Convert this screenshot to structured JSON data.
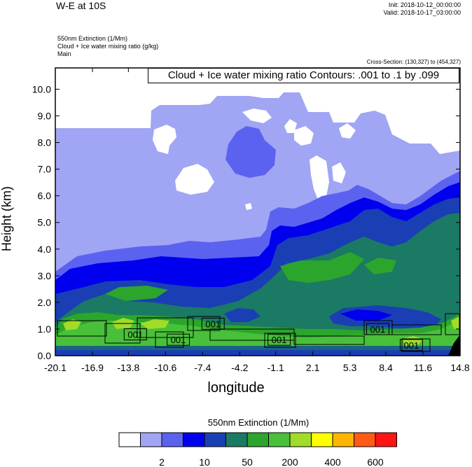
{
  "header": {
    "title": "W-E at 10S",
    "init": "Init: 2018-10-12_00:00:00",
    "valid": "Valid: 2018-10-17_03:00:00",
    "field1": "550nm Extinction   (1/Mm)",
    "field2": "Cloud + Ice water mixing ratio   (g/kg)",
    "field3": "Main",
    "cross_section": "Cross-Section: (130,327) to (454,327)",
    "contour_box": "Cloud + Ice water mixing ratio Contours: .001 to .1 by .099"
  },
  "chart_data": {
    "type": "heatmap",
    "title": "W-E at 10S",
    "xlabel": "longitude",
    "ylabel": "Height (km)",
    "xlim": [
      -20.1,
      14.8
    ],
    "ylim": [
      0.0,
      10.8
    ],
    "x_ticks": [
      "-20.1",
      "-16.9",
      "-13.8",
      "-10.6",
      "-7.4",
      "-4.2",
      "-1.1",
      "2.1",
      "5.3",
      "8.4",
      "11.6",
      "14.8"
    ],
    "x_tick_values": [
      -20.1,
      -16.9,
      -13.8,
      -10.6,
      -7.4,
      -4.2,
      -1.1,
      2.1,
      5.3,
      8.4,
      11.6,
      14.8
    ],
    "y_ticks": [
      "0.0",
      "1.0",
      "2.0",
      "3.0",
      "4.0",
      "5.0",
      "6.0",
      "7.0",
      "8.0",
      "9.0",
      "10.0"
    ],
    "y_tick_values": [
      0,
      1,
      2,
      3,
      4,
      5,
      6,
      7,
      8,
      9,
      10
    ],
    "contour_labels": [
      {
        "text": "001",
        "x": -13.2,
        "y": 0.8
      },
      {
        "text": "001",
        "x": -9.5,
        "y": 0.6
      },
      {
        "text": "001",
        "x": -6.5,
        "y": 1.2
      },
      {
        "text": "001",
        "x": -0.8,
        "y": 0.6
      },
      {
        "text": "001",
        "x": 7.7,
        "y": 1.0
      },
      {
        "text": "001",
        "x": 10.6,
        "y": 0.4
      }
    ],
    "colorbar": {
      "title": "550nm Extinction  (1/Mm)",
      "colors": [
        "#ffffff",
        "#a0a6f4",
        "#5c62f0",
        "#0000ee",
        "#1a3fb4",
        "#1a7a64",
        "#2ca52c",
        "#48c03a",
        "#a0dc28",
        "#ffff00",
        "#ffb400",
        "#ff5a14",
        "#ff1414"
      ],
      "labels": [
        {
          "text": "2",
          "after_box": 3
        },
        {
          "text": "10",
          "after_box": 5
        },
        {
          "text": "50",
          "after_box": 7
        },
        {
          "text": "200",
          "after_box": 9
        },
        {
          "text": "400",
          "after_box": 11
        },
        {
          "text": "600",
          "after_box": 13
        }
      ]
    }
  }
}
